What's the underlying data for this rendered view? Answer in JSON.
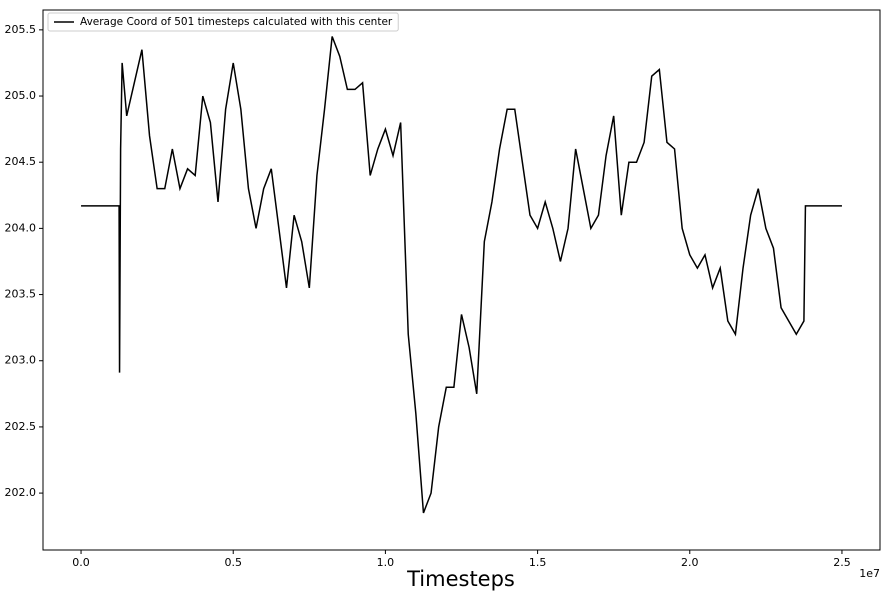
{
  "chart_data": {
    "type": "line",
    "xlabel": "Timesteps",
    "x_offset_label": "1e7",
    "x": [
      0,
      250000,
      500000,
      750000,
      1000000,
      1250000,
      1265000,
      1300000,
      1350000,
      1500000,
      1750000,
      2000000,
      2250000,
      2500000,
      2750000,
      3000000,
      3250000,
      3500000,
      3750000,
      4000000,
      4250000,
      4500000,
      4750000,
      5000000,
      5250000,
      5500000,
      5750000,
      6000000,
      6250000,
      6500000,
      6750000,
      7000000,
      7250000,
      7500000,
      7750000,
      8000000,
      8250000,
      8500000,
      8750000,
      9000000,
      9250000,
      9500000,
      9750000,
      10000000,
      10250000,
      10500000,
      10750000,
      11000000,
      11250000,
      11500000,
      11750000,
      12000000,
      12250000,
      12500000,
      12750000,
      13000000,
      13250000,
      13500000,
      13750000,
      14000000,
      14250000,
      14500000,
      14750000,
      15000000,
      15250000,
      15500000,
      15750000,
      16000000,
      16250000,
      16500000,
      16750000,
      17000000,
      17250000,
      17500000,
      17750000,
      18000000,
      18250000,
      18500000,
      18750000,
      19000000,
      19250000,
      19500000,
      19750000,
      20000000,
      20250000,
      20500000,
      20750000,
      21000000,
      21250000,
      21500000,
      21750000,
      22000000,
      22250000,
      22500000,
      22750000,
      23000000,
      23250000,
      23500000,
      23750000,
      23800000,
      24000000,
      24250000,
      24500000,
      24750000,
      25000000
    ],
    "series": [
      {
        "name": "Average Coord of 501 timesteps calculated with this center",
        "color": "#000000",
        "values": [
          204.17,
          204.17,
          204.17,
          204.17,
          204.17,
          204.17,
          202.91,
          204.6,
          205.25,
          204.85,
          205.1,
          205.35,
          204.7,
          204.3,
          204.3,
          204.6,
          204.3,
          204.45,
          204.4,
          205.0,
          204.8,
          204.2,
          204.9,
          205.25,
          204.9,
          204.3,
          204.0,
          204.3,
          204.45,
          204.0,
          203.55,
          204.1,
          203.9,
          203.55,
          204.4,
          204.9,
          205.45,
          205.3,
          205.05,
          205.05,
          205.1,
          204.4,
          204.6,
          204.75,
          204.55,
          204.8,
          203.2,
          202.6,
          201.85,
          202.0,
          202.5,
          202.8,
          202.8,
          203.35,
          203.1,
          202.75,
          203.9,
          204.2,
          204.6,
          204.9,
          204.9,
          204.5,
          204.1,
          204.0,
          204.2,
          204.0,
          203.75,
          204.0,
          204.6,
          204.3,
          204.0,
          204.1,
          204.55,
          204.85,
          204.1,
          204.5,
          204.5,
          204.65,
          205.15,
          205.2,
          204.65,
          204.6,
          204.0,
          203.8,
          203.7,
          203.8,
          203.55,
          203.7,
          203.3,
          203.2,
          203.7,
          204.1,
          204.3,
          204.0,
          203.85,
          203.4,
          203.3,
          203.2,
          203.3,
          204.17,
          204.17,
          204.17,
          204.17,
          204.17,
          204.17
        ]
      }
    ],
    "xlim": [
      -1250000,
      26250000
    ],
    "ylim": [
      201.57,
      205.65
    ],
    "xticks": [
      {
        "value": 0,
        "label": "0.0"
      },
      {
        "value": 5000000,
        "label": "0.5"
      },
      {
        "value": 10000000,
        "label": "1.0"
      },
      {
        "value": 15000000,
        "label": "1.5"
      },
      {
        "value": 20000000,
        "label": "2.0"
      },
      {
        "value": 25000000,
        "label": "2.5"
      }
    ],
    "yticks": [
      {
        "value": 202,
        "label": "202.0"
      },
      202.5,
      {
        "value": 203,
        "label": "203.0"
      },
      203.5,
      {
        "value": 204,
        "label": "204.0"
      },
      204.5,
      {
        "value": 205,
        "label": "205.0"
      },
      205.5
    ],
    "legend": "upper left",
    "grid": false
  }
}
